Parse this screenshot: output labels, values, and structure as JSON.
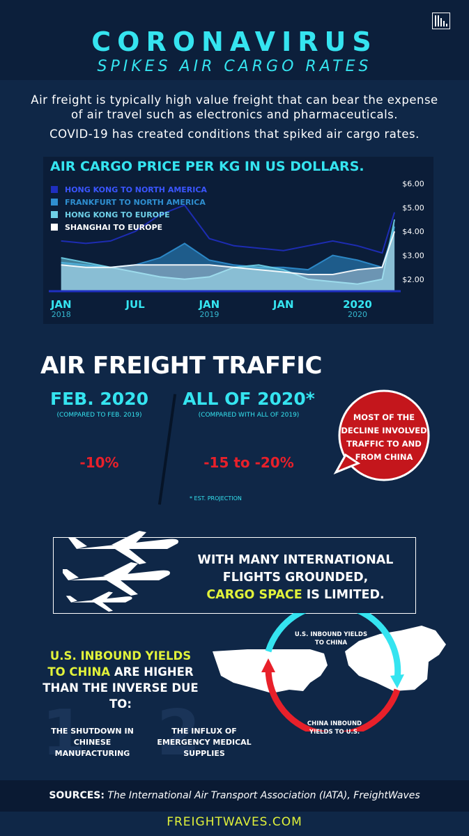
{
  "header": {
    "title": "CORONAVIRUS",
    "subtitle": "SPIKES AIR CARGO RATES"
  },
  "intro": [
    "Air freight is typically high value freight that can bear the expense of air travel such as electronics and pharmaceuticals.",
    "COVID-19 has created conditions that spiked air cargo rates."
  ],
  "chart_data": {
    "type": "area",
    "title": "AIR CARGO PRICE PER KG IN US DOLLARS.",
    "x": [
      0,
      2,
      4,
      6,
      8,
      10,
      12,
      14,
      16,
      18,
      20,
      22,
      24,
      26,
      27
    ],
    "series": [
      {
        "name": "HONG KONG TO NORTH AMERICA",
        "color": "#1f2fc0",
        "values": [
          3.6,
          3.5,
          3.6,
          4.0,
          4.7,
          5.1,
          3.7,
          3.4,
          3.3,
          3.2,
          3.4,
          3.6,
          3.4,
          3.1,
          4.8
        ]
      },
      {
        "name": "FRANKFURT TO NORTH AMERICA",
        "color": "#2f8fd0",
        "values": [
          2.7,
          2.6,
          2.5,
          2.6,
          2.9,
          3.5,
          2.8,
          2.6,
          2.5,
          2.5,
          2.4,
          3.0,
          2.8,
          2.5,
          4.2
        ]
      },
      {
        "name": "HONG KONG TO EUROPE",
        "color": "#6fd0e8",
        "values": [
          2.9,
          2.7,
          2.5,
          2.3,
          2.1,
          2.0,
          2.1,
          2.5,
          2.6,
          2.4,
          2.0,
          1.9,
          1.8,
          2.0,
          4.5
        ]
      },
      {
        "name": "SHANGHAI TO EUROPE",
        "color": "#ffffff",
        "values": [
          2.6,
          2.5,
          2.5,
          2.6,
          2.6,
          2.6,
          2.6,
          2.5,
          2.4,
          2.3,
          2.2,
          2.2,
          2.4,
          2.5,
          4.0
        ]
      }
    ],
    "xlim": [
      -1,
      27.5
    ],
    "xticks": [
      {
        "value": 0,
        "label": "JAN",
        "sublabel": "2018"
      },
      {
        "value": 6,
        "label": "JUL"
      },
      {
        "value": 12,
        "label": "JAN",
        "sublabel": "2019"
      },
      {
        "value": 18,
        "label": "JAN"
      },
      {
        "value": 24,
        "label": "2020",
        "sublabel": "2020"
      }
    ],
    "ylim": [
      1.5,
      6.25
    ],
    "yticks": [
      {
        "value": 2,
        "label": "$2.00"
      },
      {
        "value": 3,
        "label": "$3.00"
      },
      {
        "value": 4,
        "label": "$4.00"
      },
      {
        "value": 5,
        "label": "$5.00"
      },
      {
        "value": 6,
        "label": "$6.00"
      }
    ],
    "grid": false,
    "legend": "top-left"
  },
  "traffic": {
    "title": "AIR FREIGHT TRAFFIC",
    "items": [
      {
        "heading": "FEB. 2020",
        "note": "(COMPARED TO FEB. 2019)",
        "value": "-10%"
      },
      {
        "heading": "ALL OF 2020*",
        "note": "(COMPARED WITH ALL OF 2019)",
        "value": "-15 to -20%"
      }
    ],
    "footnote": "* EST. PROJECTION",
    "bubble": "MOST OF THE DECLINE INVOLVED TRAFFIC TO AND FROM CHINA"
  },
  "cargo": {
    "lines": [
      "WITH MANY INTERNATIONAL",
      "FLIGHTS GROUNDED,"
    ],
    "highlight": "CARGO SPACE",
    "rest": "IS LIMITED."
  },
  "yields": {
    "highlight": "U.S. INBOUND YIELDS TO CHINA",
    "rest": "ARE HIGHER THAN THE INVERSE DUE TO:",
    "reasons": [
      {
        "number": "1",
        "text": "THE SHUTDOWN IN CHINESE MANUFACTURING"
      },
      {
        "number": "2",
        "text": "THE INFLUX OF EMERGENCY MEDICAL SUPPLIES"
      }
    ],
    "arrows": [
      "U.S. INBOUND YIELDS TO CHINA",
      "CHINA INBOUND YIELDS TO U.S."
    ]
  },
  "sources": {
    "label": "SOURCES:",
    "text": "The International Air Transport Association (IATA), FreightWaves"
  },
  "footer": "FREIGHTWAVES.COM"
}
